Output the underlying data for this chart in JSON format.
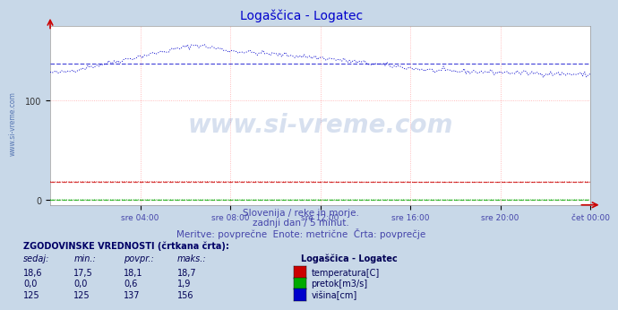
{
  "title": "Logaščica - Logatec",
  "title_color": "#0000cc",
  "bg_color": "#c8d8e8",
  "plot_bg_color": "#ffffff",
  "xlabel": "",
  "ylabel": "",
  "xlim_hours": 24,
  "ylim": [
    -5,
    175
  ],
  "yticks": [
    0,
    100
  ],
  "xtick_labels": [
    "sre 04:00",
    "sre 08:00",
    "sre 12:00",
    "sre 16:00",
    "sre 20:00",
    "čet 00:00"
  ],
  "xtick_positions": [
    4,
    8,
    12,
    16,
    20,
    24
  ],
  "subtitle1": "Slovenija / reke in morje.",
  "subtitle2": "zadnji dan / 5 minut.",
  "subtitle3": "Meritve: povprečne  Enote: metrične  Črta: povprečje",
  "subtitle_color": "#4444aa",
  "watermark_text": "www.si-vreme.com",
  "watermark_color": "#2255aa",
  "watermark_alpha": 0.18,
  "sidebar_text": "www.si-vreme.com",
  "sidebar_color": "#4466aa",
  "table_title": "ZGODOVINSKE VREDNOSTI (črtkana črta):",
  "table_headers": [
    "sedaj:",
    "min.:",
    "povpr.:",
    "maks.:"
  ],
  "table_col5": "Logaščica - Logatec",
  "table_rows": [
    {
      "sedaj": "18,6",
      "min": "17,5",
      "povpr": "18,1",
      "maks": "18,7",
      "label": "temperatura[C]",
      "color": "#cc0000"
    },
    {
      "sedaj": "0,0",
      "min": "0,0",
      "povpr": "0,6",
      "maks": "1,9",
      "label": "pretok[m3/s]",
      "color": "#00aa00"
    },
    {
      "sedaj": "125",
      "min": "125",
      "povpr": "137",
      "maks": "156",
      "label": "višina[cm]",
      "color": "#0000cc"
    }
  ],
  "temp_avg": 18.1,
  "flow_avg": 0.6,
  "height_avg": 137,
  "temp_color": "#cc0000",
  "flow_color": "#00aa00",
  "height_color": "#0000cc"
}
